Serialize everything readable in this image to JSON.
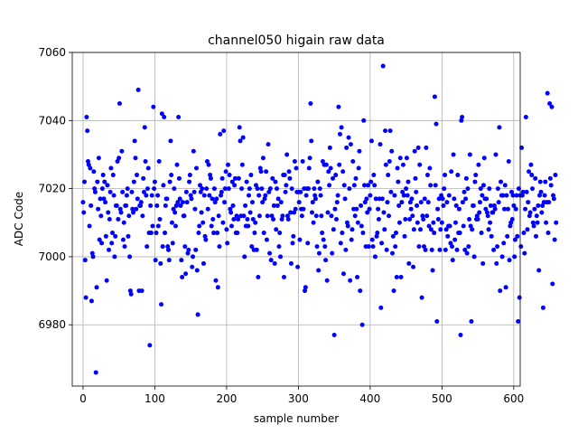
{
  "chart_data": {
    "type": "scatter",
    "title": "channel050 higain raw data",
    "xlabel": "sample number",
    "ylabel": "ADC Code",
    "xlim": [
      -15,
      609
    ],
    "ylim": [
      6962,
      7060
    ],
    "xticks": [
      0,
      100,
      200,
      300,
      400,
      500,
      600
    ],
    "yticks": [
      6980,
      7000,
      7020,
      7040,
      7060
    ],
    "grid": true,
    "marker_color": "#0000ff",
    "n_points": 580,
    "x_start": 0,
    "x_step": 1,
    "y": [
      7016,
      7013,
      7022,
      6999,
      6988,
      7041,
      7037,
      7028,
      7027,
      7009,
      7026,
      7015,
      6987,
      7001,
      7000,
      7025,
      7020,
      7019,
      6966,
      6991,
      7022,
      7014,
      7029,
      7005,
      7017,
      7012,
      7004,
      7020,
      7024,
      7017,
      7022,
      7016,
      7006,
      6993,
      7021,
      7013,
      7002,
      7011,
      7019,
      7026,
      7004,
      7007,
      7024,
      7018,
      7000,
      7006,
      7015,
      7015,
      7028,
      7011,
      7029,
      7045,
      7014,
      7013,
      7031,
      7019,
      7005,
      7010,
      7003,
      7015,
      7015,
      7018,
      7020,
      7006,
      7012,
      7000,
      6990,
      6989,
      7019,
      7014,
      7013,
      7022,
      7034,
      7029,
      7014,
      7024,
      7017,
      7049,
      6990,
      7015,
      7015,
      7016,
      6990,
      7012,
      7023,
      7019,
      7038,
      7028,
      7018,
      7003,
      7020,
      7026,
      7007,
      6974,
      7015,
      7007,
      7018,
      7009,
      7044,
      7020,
      7022,
      6999,
      7007,
      7015,
      7018,
      7009,
      7028,
      7011,
      6998,
      6986,
      7042,
      7003,
      7021,
      7041,
      7007,
      7015,
      7017,
      7017,
      7003,
      7002,
      6999,
      7022,
      7034,
      7024,
      7010,
      7004,
      7014,
      7020,
      7013,
      7009,
      7015,
      7027,
      7016,
      7041,
      7023,
      7017,
      7015,
      6999,
      6994,
      7016,
      7012,
      7012,
      7003,
      6995,
      7019,
      7016,
      7001,
      7002,
      7022,
      7024,
      7018,
      7017,
      6997,
      7000,
      7031,
      7019,
      7014,
      7002,
      7026,
      6996,
      6983,
      7007,
      7009,
      7021,
      7019,
      7013,
      7020,
      7010,
      6998,
      7018,
      7006,
      7005,
      7020,
      7028,
      7014,
      7027,
      7018,
      7024,
      7023,
      7009,
      7017,
      7011,
      7007,
      7020,
      7016,
      6993,
      7017,
      7007,
      6991,
      7012,
      7003,
      7036,
      7018,
      7019,
      7023,
      7010,
      7037,
      7016,
      7020,
      7025,
      7008,
      7004,
      7027,
      7020,
      7024,
      7014,
      7013,
      7009,
      7022,
      7015,
      7011,
      7021,
      7023,
      7007,
      7012,
      7007,
      7011,
      7023,
      7038,
      7034,
      7012,
      7020,
      7027,
      7035,
      7012,
      7000,
      7015,
      7009,
      7022,
      7011,
      7009,
      7018,
      7020,
      7013,
      7024,
      7003,
      7016,
      7011,
      7002,
      7007,
      7010,
      7021,
      7002,
      7020,
      6994,
      7018,
      7012,
      7026,
      7025,
      7020,
      7016,
      7029,
      7007,
      7017,
      7018,
      7025,
      7005,
      7012,
      7033,
      7019,
      7001,
      7020,
      6999,
      7012,
      7023,
      7011,
      7015,
      6998,
      7022,
      7008,
      7020,
      7015,
      7017,
      7003,
      7007,
      7000,
      7016,
      7011,
      7012,
      7024,
      6994,
      7024,
      7019,
      7021,
      7030,
      7012,
      7011,
      7025,
      7023,
      7013,
      6998,
      7020,
      7004,
      7006,
      7013,
      7028,
      7014,
      7026,
      7019,
      6997,
      7019,
      7016,
      7005,
      7019,
      7014,
      7012,
      7028,
      7014,
      7020,
      6990,
      6991,
      7018,
      7020,
      7004,
      7020,
      7026,
      7029,
      7045,
      7034,
      7013,
      7016,
      7010,
      7020,
      7018,
      7017,
      7012,
      7003,
      7022,
      6996,
      7001,
      7020,
      7018,
      7012,
      7007,
      7028,
      7005,
      7027,
      7003,
      6999,
      7027,
      6993,
      7013,
      7025,
      7021,
      7032,
      7026,
      7012,
      7001,
      7023,
      7008,
      6977,
      7014,
      7024,
      7011,
      7016,
      7018,
      7044,
      7027,
      7036,
      7004,
      7038,
      7007,
      7025,
      6995,
      7021,
      7017,
      7002,
      7032,
      7010,
      7009,
      7035,
      7020,
      6993,
      7033,
      7005,
      7008,
      7028,
      7014,
      7021,
      7012,
      7023,
      7014,
      6994,
      7010,
      7026,
      7031,
      6990,
      7015,
      7009,
      6980,
      7007,
      7040,
      7021,
      7016,
      7003,
      7017,
      7013,
      7021,
      7003,
      7014,
      7018,
      7022,
      7034,
      7005,
      7003,
      7024,
      7021,
      7000,
      7017,
      7006,
      7007,
      7014,
      7011,
      7017,
      7033,
      6985,
      7004,
      7017,
      7056,
      7013,
      7008,
      7037,
      7027,
      7002,
      7016,
      7024,
      7012,
      7028,
      7037,
      7019,
      7031,
      7001,
      7006,
      6990,
      7018,
      7003,
      7007,
      6994,
      7026,
      7022,
      7015,
      7010,
      7029,
      6994,
      7016,
      7019,
      7027,
      7018,
      7006,
      7011,
      7020,
      7029,
      7018,
      7022,
      6998,
      7011,
      7016,
      7014,
      7017,
      7012,
      6997,
      7008,
      7031,
      7023,
      7019,
      7015,
      7010,
      7032,
      7003,
      7027,
      7008,
      7016,
      6988,
      7012,
      7011,
      7003,
      7017,
      7002,
      7032,
      7012,
      7024,
      7016,
      7009,
      7026,
      7021,
      7008,
      7002,
      6996,
      7010,
      7007,
      7047,
      7021,
      7039,
      6981,
      7014,
      7011,
      7017,
      7002,
      7008,
      7018,
      7010,
      7017,
      7015,
      7020,
      7024,
      7002,
      7008,
      7016,
      7006,
      7009,
      7018,
      7009,
      7004,
      7025,
      7003,
      6999,
      7030,
      7017,
      7005,
      7010,
      7015,
      7002,
      7024,
      7007,
      7014,
      7007,
      6977,
      7040,
      7041,
      7016,
      7009,
      7019,
      7002,
      7017,
      7023,
      7001,
      7020,
      7003,
      7011,
      7030,
      7009,
      6981,
      7008,
      7015,
      7015,
      7000,
      7022,
      7024,
      7011,
      7012,
      7011,
      7027,
      7013,
      7016,
      7020,
      7007,
      7018,
      6998,
      7021,
      7029,
      7017,
      7014,
      7017,
      7013,
      7012,
      7008,
      7020,
      7010,
      7015,
      7006,
      7013,
      7013,
      7002,
      7015,
      7014,
      7030,
      6998,
      7003,
      7020,
      7016,
      7038,
      6990,
      7022,
      7018,
      7000,
      7018,
      7004,
      7014,
      7021,
      6991,
      7018,
      7006,
      7014,
      7028,
      6999,
      7009,
      7010,
      7019,
      7011,
      7018,
      7015,
      7000,
      7005,
      7014,
      7018,
      7006,
      6981,
      7020,
      6988,
      7018,
      7003,
      7032,
      7018,
      7019,
      7007,
      7001,
      7014,
      7041,
      7019,
      7008,
      7016,
      7025,
      7012,
      7013,
      7027,
      7024,
      7020,
      7010,
      7009,
      7014,
      7023,
      7006,
      7012,
      7010,
      7015,
      6996,
      7018,
      7022,
      7019,
      7013,
      7015,
      6985,
      7016,
      7018,
      7022,
      7010,
      7016,
      7048,
      7007,
      7016,
      7045,
      7023,
      7021,
      7044,
      6992,
      7018,
      7017,
      7005,
      7024,
      7010
    ]
  }
}
